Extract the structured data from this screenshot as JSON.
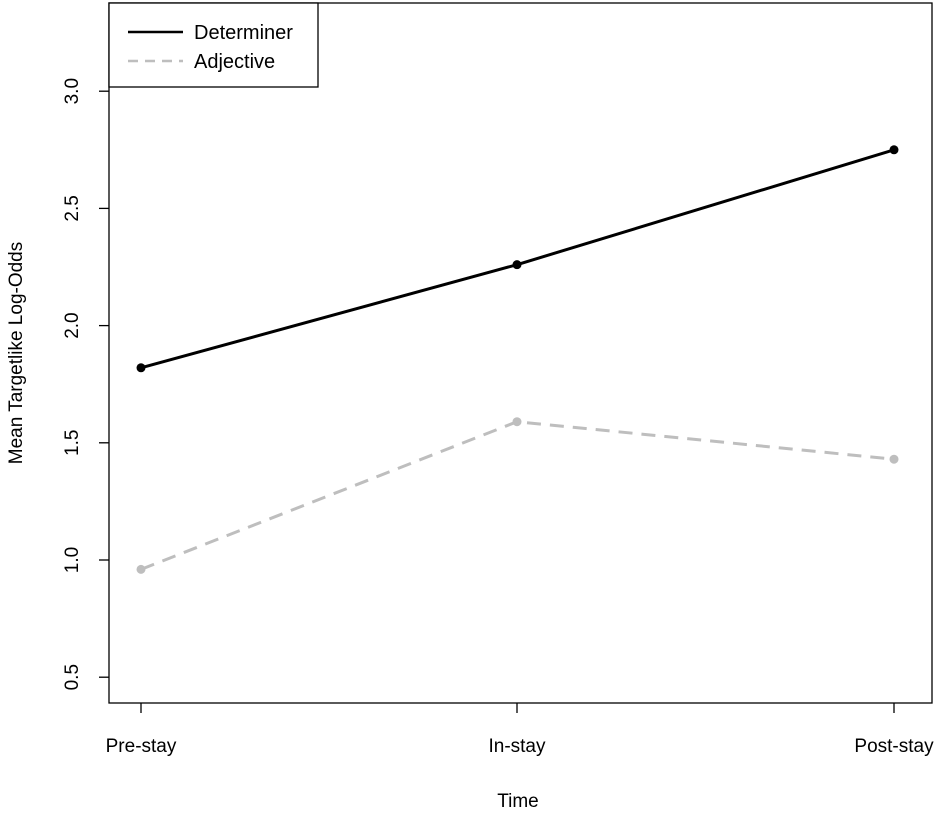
{
  "chart_data": {
    "type": "line",
    "x": [
      "Pre-stay",
      "In-stay",
      "Post-stay"
    ],
    "xlabel": "Time",
    "ylabel": "Mean Targetlike Log-Odds",
    "ylim": [
      0.4,
      3.4
    ],
    "yticks": [
      "0.5",
      "1.0",
      "1.5",
      "2.0",
      "2.5",
      "3.0"
    ],
    "grid": false,
    "legend_position": "top-left",
    "series": [
      {
        "name": "Determiner",
        "values": [
          1.82,
          2.26,
          2.75
        ],
        "color": "#000000",
        "style": "solid"
      },
      {
        "name": "Adjective",
        "values": [
          0.96,
          1.59,
          1.43
        ],
        "color": "#bebebe",
        "style": "dashed"
      }
    ]
  }
}
